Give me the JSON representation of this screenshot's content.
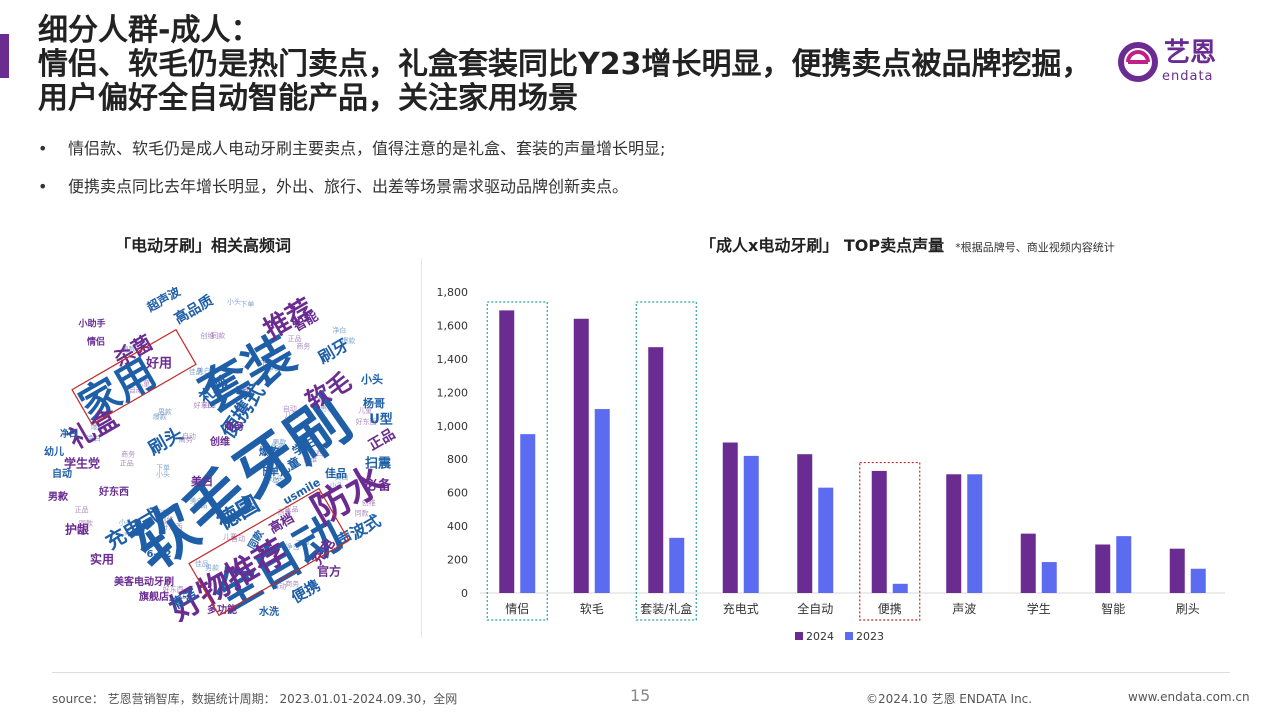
{
  "header": {
    "title_lines": [
      "细分人群-成人：",
      "情侣、软毛仍是热门卖点，礼盒套装同比Y23增长明显，便携卖点被品牌挖掘，",
      "用户偏好全自动智能产品，关注家用场景"
    ]
  },
  "logo": {
    "cn": "艺恩",
    "en": "endata"
  },
  "bullets": [
    "情侣款、软毛仍是成人电动牙刷主要卖点，值得注意的是礼盒、套装的声量增长明显;",
    "便携卖点同比去年增长明显，外出、旅行、出差等场景需求驱动品牌创新卖点。"
  ],
  "bullet_symbol": "•",
  "wordcloud": {
    "title": "「电动牙刷」相关高频词",
    "words": [
      {
        "text": "软毛牙刷",
        "color": "#1f5fa8"
      },
      {
        "text": "套装",
        "color": "#1f5fa8"
      },
      {
        "text": "全自动",
        "color": "#1f5fa8"
      },
      {
        "text": "家用",
        "color": "#1f5fa8"
      },
      {
        "text": "好物推荐",
        "color": "#6a2c91"
      },
      {
        "text": "防水",
        "color": "#6a2c91"
      },
      {
        "text": "礼盒",
        "color": "#6a2c91"
      },
      {
        "text": "推荐",
        "color": "#6a2c91"
      },
      {
        "text": "软毛",
        "color": "#6a2c91"
      },
      {
        "text": "德国",
        "color": "#1f5fa8"
      },
      {
        "text": "杀菌",
        "color": "#6a2c91"
      },
      {
        "text": "便携式",
        "color": "#1f5fa8"
      },
      {
        "text": "充电式",
        "color": "#1f5fa8"
      },
      {
        "text": "声波式",
        "color": "#1f5fa8"
      },
      {
        "text": "刷牙",
        "color": "#1f5fa8"
      },
      {
        "text": "刷头",
        "color": "#1f5fa8"
      },
      {
        "text": "礼物",
        "color": "#1f5fa8"
      },
      {
        "text": "高品质",
        "color": "#1f5fa8"
      },
      {
        "text": "超声波",
        "color": "#1f5fa8"
      },
      {
        "text": "智能",
        "color": "#6a2c91"
      },
      {
        "text": "便携",
        "color": "#1f5fa8"
      },
      {
        "text": "清洁",
        "color": "#1f5fa8"
      },
      {
        "text": "充电",
        "color": "#6a2c91"
      },
      {
        "text": "好用",
        "color": "#6a2c91"
      },
      {
        "text": "学生党",
        "color": "#6a2c91"
      },
      {
        "text": "正品",
        "color": "#6a2c91"
      },
      {
        "text": "扫震",
        "color": "#1f5fa8"
      },
      {
        "text": "必备",
        "color": "#6a2c91"
      },
      {
        "text": "U型",
        "color": "#1f5fa8"
      },
      {
        "text": "护龈",
        "color": "#6a2c91"
      },
      {
        "text": "实用",
        "color": "#6a2c91"
      },
      {
        "text": "官方",
        "color": "#6a2c91"
      },
      {
        "text": "小头",
        "color": "#1f5fa8"
      },
      {
        "text": "杨哥",
        "color": "#1f5fa8"
      },
      {
        "text": "专用",
        "color": "#1f5fa8"
      },
      {
        "text": "学生",
        "color": "#1f5fa8"
      },
      {
        "text": "儿童",
        "color": "#1f5fa8"
      },
      {
        "text": "高档",
        "color": "#6a2c91"
      },
      {
        "text": "usmile",
        "color": "#1f5fa8"
      },
      {
        "text": "佳品",
        "color": "#1f5fa8"
      },
      {
        "text": "幼儿",
        "color": "#1f5fa8"
      },
      {
        "text": "自动",
        "color": "#1f5fa8"
      },
      {
        "text": "男款",
        "color": "#6a2c91"
      },
      {
        "text": "多功能",
        "color": "#6a2c91"
      },
      {
        "text": "水洗",
        "color": "#1f5fa8"
      },
      {
        "text": "美客电动牙刷",
        "color": "#6a2c91"
      },
      {
        "text": "旗舰店",
        "color": "#6a2c91"
      },
      {
        "text": "6-12",
        "color": "#1f5fa8"
      },
      {
        "text": "同款",
        "color": "#1f5fa8"
      },
      {
        "text": "美白",
        "color": "#6a2c91"
      },
      {
        "text": "创维",
        "color": "#6a2c91"
      },
      {
        "text": "商务",
        "color": "#6a2c91"
      },
      {
        "text": "爆款",
        "color": "#1f5fa8"
      },
      {
        "text": "下单",
        "color": "#1f5fa8"
      },
      {
        "text": "小助手",
        "color": "#6a2c91"
      },
      {
        "text": "情侣",
        "color": "#6a2c91"
      },
      {
        "text": "好东西",
        "color": "#6a2c91"
      },
      {
        "text": "净白",
        "color": "#1f5fa8"
      }
    ]
  },
  "chart_data": {
    "type": "bar",
    "title": "「成人x电动牙刷」 TOP卖点声量",
    "note": "*根据品牌号、商业视频内容统计",
    "categories": [
      "情侣",
      "软毛",
      "套装/礼盒",
      "充电式",
      "全自动",
      "便携",
      "声波",
      "学生",
      "智能",
      "刷头"
    ],
    "series": [
      {
        "name": "2024",
        "color": "#6a2c91",
        "values": [
          1690,
          1640,
          1470,
          900,
          830,
          730,
          710,
          355,
          290,
          265
        ]
      },
      {
        "name": "2023",
        "color": "#5b6cf0",
        "values": [
          950,
          1100,
          330,
          820,
          630,
          55,
          710,
          185,
          340,
          145
        ]
      }
    ],
    "ylim": [
      0,
      1800
    ],
    "yticks": [
      "0",
      "200",
      "400",
      "600",
      "800",
      "1,000",
      "1,200",
      "1,400",
      "1,600",
      "1,800"
    ],
    "legend_position": "bottom",
    "grid": false,
    "highlighted_categories": [
      "情侣",
      "套装/礼盒",
      "便携"
    ]
  },
  "footer": {
    "source": "source： 艺恩营销智库，数据统计周期： 2023.01.01-2024.09.30，全网",
    "page": "15",
    "copyright": "©2024.10  艺恩 ENDATA Inc.",
    "website": "www.endata.com.cn"
  }
}
